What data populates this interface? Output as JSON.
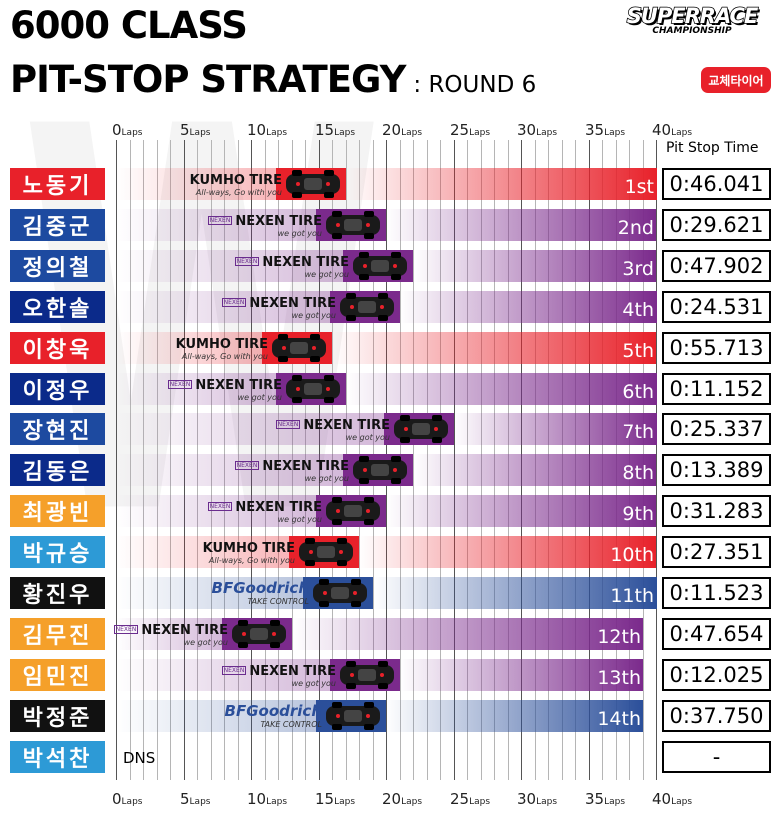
{
  "header": {
    "title_line1": "6000 CLASS",
    "title_line2": "PIT-STOP STRATEGY",
    "round_label": ": ROUND 6",
    "logo_main": "SUPERRACE",
    "logo_sub": "CHAMPIONSHIP",
    "badge": "교체타이어",
    "watermark": "W"
  },
  "axis": {
    "unit": "Laps",
    "ticks": [
      "0",
      "5",
      "10",
      "15",
      "20",
      "25",
      "30",
      "35",
      "40"
    ]
  },
  "pit_stop_header": "Pit Stop Time",
  "colors": {
    "kumho": "#e8212a",
    "nexen": "#7b2a8c",
    "bfgoodrich": "#2b4f9a",
    "name_red": "#e8212a",
    "name_blue": "#1d4aa0",
    "name_darkblue": "#0b2a8a",
    "name_orange": "#f5a02a",
    "name_black": "#111111",
    "name_lightblue": "#2d9ad6"
  },
  "chart_data": {
    "type": "bar",
    "x_unit": "Laps",
    "xlim": [
      0,
      40
    ],
    "rows": [
      {
        "driver": "노동기",
        "tire": "KUMHO TIRE",
        "tire_sub": "All-ways, Go with you",
        "pit_lap": 17,
        "finish_lap": 40,
        "position": "1st",
        "pit_time": "0:46.041",
        "name_color": "name_red"
      },
      {
        "driver": "김중군",
        "tire": "NEXEN TIRE",
        "tire_sub": "we got you",
        "pit_lap": 20,
        "finish_lap": 40,
        "position": "2nd",
        "pit_time": "0:29.621",
        "name_color": "name_blue"
      },
      {
        "driver": "정의철",
        "tire": "NEXEN TIRE",
        "tire_sub": "we got you",
        "pit_lap": 22,
        "finish_lap": 40,
        "position": "3rd",
        "pit_time": "0:47.902",
        "name_color": "name_blue"
      },
      {
        "driver": "오한솔",
        "tire": "NEXEN TIRE",
        "tire_sub": "we got you",
        "pit_lap": 21,
        "finish_lap": 40,
        "position": "4th",
        "pit_time": "0:24.531",
        "name_color": "name_darkblue"
      },
      {
        "driver": "이창욱",
        "tire": "KUMHO TIRE",
        "tire_sub": "All-ways, Go with you",
        "pit_lap": 16,
        "finish_lap": 40,
        "position": "5th",
        "pit_time": "0:55.713",
        "name_color": "name_red"
      },
      {
        "driver": "이정우",
        "tire": "NEXEN TIRE",
        "tire_sub": "we got you",
        "pit_lap": 17,
        "finish_lap": 40,
        "position": "6th",
        "pit_time": "0:11.152",
        "name_color": "name_darkblue"
      },
      {
        "driver": "장현진",
        "tire": "NEXEN TIRE",
        "tire_sub": "we got you",
        "pit_lap": 25,
        "finish_lap": 40,
        "position": "7th",
        "pit_time": "0:25.337",
        "name_color": "name_blue"
      },
      {
        "driver": "김동은",
        "tire": "NEXEN TIRE",
        "tire_sub": "we got you",
        "pit_lap": 22,
        "finish_lap": 40,
        "position": "8th",
        "pit_time": "0:13.389",
        "name_color": "name_darkblue"
      },
      {
        "driver": "최광빈",
        "tire": "NEXEN TIRE",
        "tire_sub": "we got you",
        "pit_lap": 20,
        "finish_lap": 40,
        "position": "9th",
        "pit_time": "0:31.283",
        "name_color": "name_orange"
      },
      {
        "driver": "박규승",
        "tire": "KUMHO TIRE",
        "tire_sub": "All-ways, Go with you",
        "pit_lap": 18,
        "finish_lap": 40,
        "position": "10th",
        "pit_time": "0:27.351",
        "name_color": "name_lightblue"
      },
      {
        "driver": "황진우",
        "tire": "BFGoodrich",
        "tire_sub": "TAKE CONTROL",
        "pit_lap": 19,
        "finish_lap": 40,
        "position": "11th",
        "pit_time": "0:11.523",
        "name_color": "name_black"
      },
      {
        "driver": "김무진",
        "tire": "NEXEN TIRE",
        "tire_sub": "we got you",
        "pit_lap": 13,
        "finish_lap": 39,
        "position": "12th",
        "pit_time": "0:47.654",
        "name_color": "name_orange"
      },
      {
        "driver": "임민진",
        "tire": "NEXEN TIRE",
        "tire_sub": "we got you",
        "pit_lap": 21,
        "finish_lap": 39,
        "position": "13th",
        "pit_time": "0:12.025",
        "name_color": "name_orange"
      },
      {
        "driver": "박정준",
        "tire": "BFGoodrich",
        "tire_sub": "TAKE CONTROL",
        "pit_lap": 20,
        "finish_lap": 39,
        "position": "14th",
        "pit_time": "0:37.750",
        "name_color": "name_black"
      },
      {
        "driver": "박석찬",
        "tire": "",
        "tire_sub": "",
        "pit_lap": null,
        "finish_lap": null,
        "position": "DNS",
        "pit_time": "-",
        "name_color": "name_lightblue"
      }
    ]
  }
}
